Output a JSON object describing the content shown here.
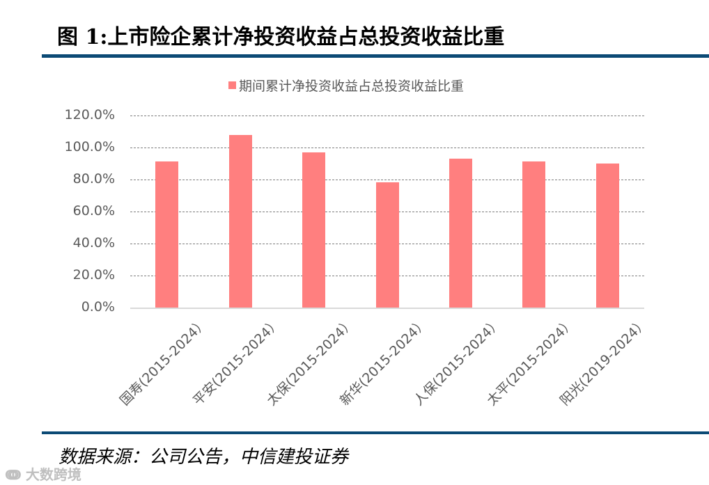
{
  "header": {
    "title": "图 1:上市险企累计净投资收益占总投资收益比重"
  },
  "footer": {
    "source": "数据来源：公司公告，中信建投证券",
    "watermark": "大数跨境"
  },
  "colors": {
    "bar": "#ff7f7f",
    "rule": "#0b4a75",
    "text": "#595959"
  },
  "chart_data": {
    "type": "bar",
    "title": "",
    "legend": [
      "期间累计净投资收益占总投资收益比重"
    ],
    "legend_position": "top",
    "categories": [
      "国寿(2015-2024）",
      "平安(2015-2024）",
      "太保(2015-2024）",
      "新华(2015-2024）",
      "人保(2015-2024）",
      "太平(2015-2024）",
      "阳光(2019-2024）"
    ],
    "series": [
      {
        "name": "期间累计净投资收益占总投资收益比重",
        "values": [
          91.3,
          108.0,
          97.1,
          78.3,
          93.0,
          91.1,
          89.8
        ]
      }
    ],
    "xlabel": "",
    "ylabel": "",
    "ylim": [
      0,
      120
    ],
    "yticks": [
      "0.0%",
      "20.0%",
      "40.0%",
      "60.0%",
      "80.0%",
      "100.0%",
      "120.0%"
    ],
    "grid": true,
    "unit": "%"
  }
}
